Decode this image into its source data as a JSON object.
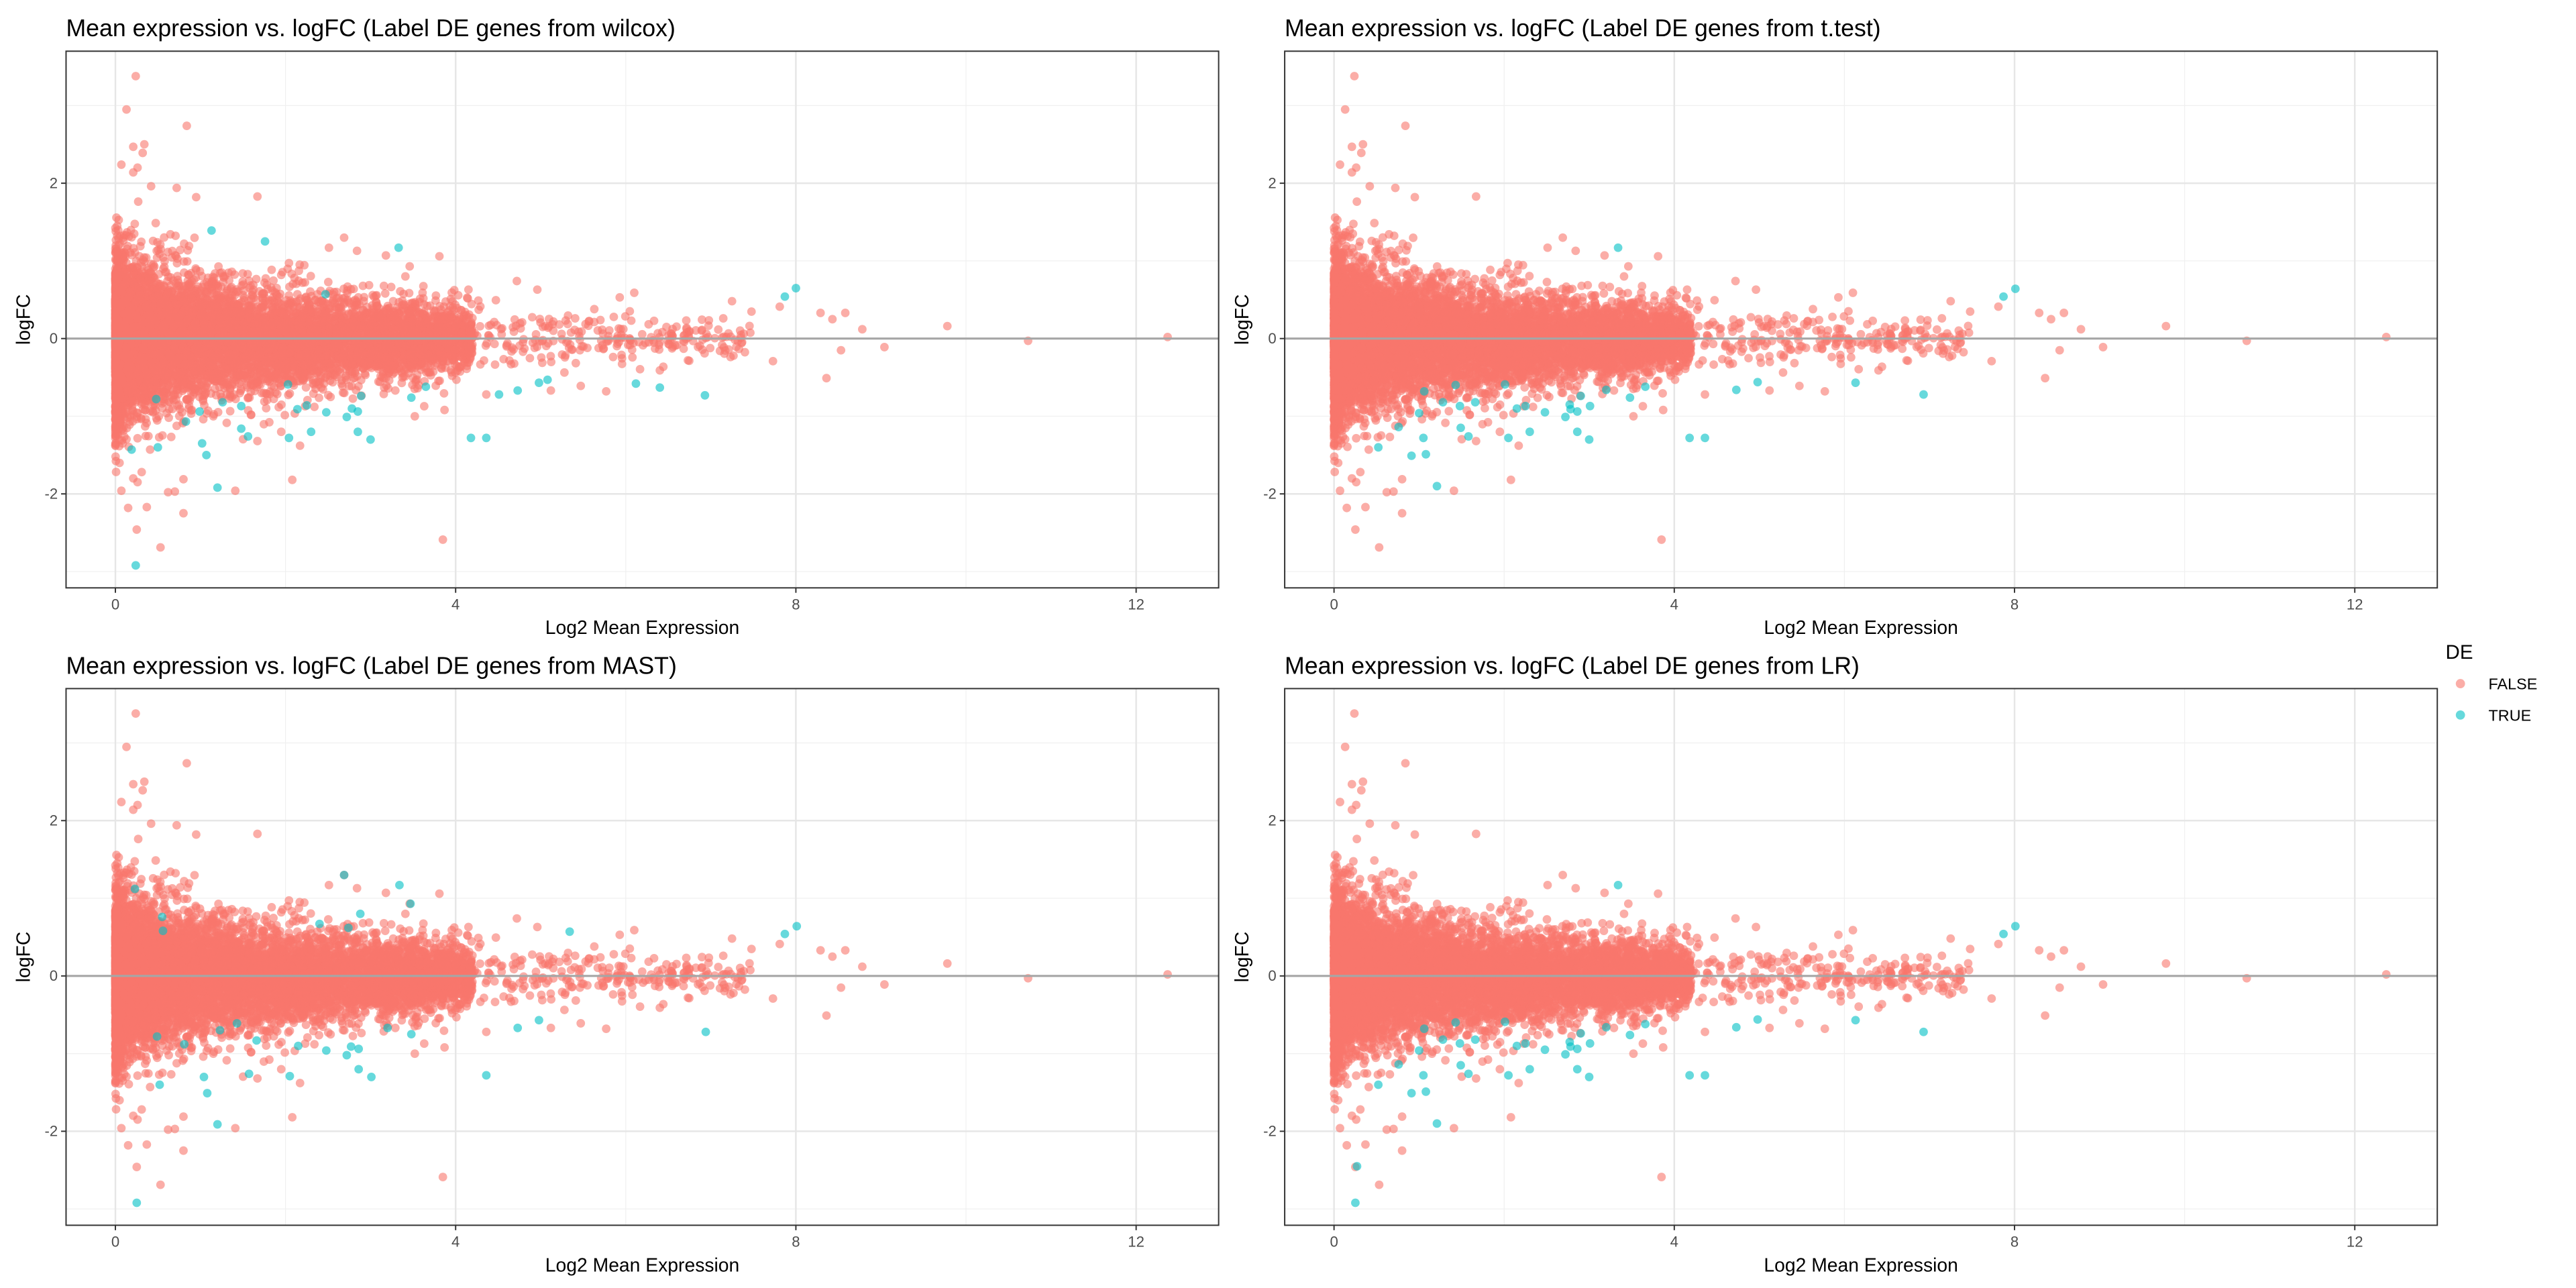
{
  "chart_data": {
    "type": "scatter",
    "xlabel": "Log2 Mean Expression",
    "ylabel": "logFC",
    "xlim": [
      -0.58,
      12.97
    ],
    "ylim": [
      -3.21,
      3.7
    ],
    "x_ticks": [
      0,
      4,
      8,
      12
    ],
    "y_ticks": [
      -2,
      0,
      2
    ],
    "grid": true,
    "hline": 0,
    "legend": {
      "title": "DE",
      "position": "right",
      "entries": [
        {
          "label": "FALSE",
          "color": "#F8766D"
        },
        {
          "label": "TRUE",
          "color": "#00BFC4"
        }
      ]
    },
    "background_cloud": {
      "n": 9000,
      "seed": 7,
      "note_de": "FALSE"
    },
    "false_points": [
      [
        0.24,
        3.38
      ],
      [
        0.13,
        2.95
      ],
      [
        0.84,
        2.74
      ],
      [
        0.21,
        2.47
      ],
      [
        0.34,
        2.5
      ],
      [
        0.32,
        2.39
      ],
      [
        0.07,
        2.24
      ],
      [
        0.26,
        2.2
      ],
      [
        0.21,
        2.14
      ],
      [
        0.42,
        1.96
      ],
      [
        0.72,
        1.94
      ],
      [
        1.67,
        1.83
      ],
      [
        0.95,
        1.82
      ],
      [
        2.69,
        1.3
      ],
      [
        2.51,
        1.17
      ],
      [
        2.84,
        1.13
      ],
      [
        3.81,
        1.06
      ],
      [
        3.18,
        1.07
      ],
      [
        3.46,
        0.93
      ],
      [
        4.72,
        0.74
      ],
      [
        4.96,
        0.63
      ],
      [
        6.1,
        0.59
      ],
      [
        5.93,
        0.53
      ],
      [
        7.25,
        0.48
      ],
      [
        7.81,
        0.41
      ],
      [
        8.58,
        0.33
      ],
      [
        8.29,
        0.33
      ],
      [
        8.43,
        0.25
      ],
      [
        8.78,
        0.12
      ],
      [
        9.78,
        0.16
      ],
      [
        10.73,
        -0.03
      ],
      [
        12.37,
        0.02
      ],
      [
        9.04,
        -0.11
      ],
      [
        8.53,
        -0.15
      ],
      [
        8.36,
        -0.51
      ],
      [
        7.73,
        -0.29
      ],
      [
        6.73,
        -0.28
      ],
      [
        6.4,
        -0.41
      ],
      [
        5.77,
        -0.68
      ],
      [
        5.47,
        -0.61
      ],
      [
        5.12,
        -0.67
      ],
      [
        4.36,
        -0.72
      ],
      [
        3.87,
        -0.92
      ],
      [
        3.52,
        -1.0
      ],
      [
        3.85,
        -2.59
      ],
      [
        2.08,
        -1.82
      ],
      [
        2.17,
        -1.38
      ],
      [
        1.95,
        -1.2
      ],
      [
        1.67,
        -1.32
      ],
      [
        1.41,
        -1.96
      ],
      [
        0.62,
        -1.98
      ],
      [
        0.7,
        -1.97
      ],
      [
        0.8,
        -2.25
      ],
      [
        0.8,
        -1.81
      ],
      [
        0.07,
        -1.96
      ],
      [
        0.15,
        -2.18
      ],
      [
        0.37,
        -2.17
      ],
      [
        0.25,
        -2.46
      ],
      [
        0.53,
        -2.69
      ],
      [
        0.21,
        -1.8
      ],
      [
        0.26,
        -1.85
      ],
      [
        0.31,
        -1.72
      ]
    ],
    "panels": [
      {
        "title": "Mean expression vs. logFC (Label DE genes from wilcox)",
        "x_tick_labels": [
          "0",
          "4",
          "8",
          "12"
        ],
        "y_tick_labels": [
          "-2",
          "0",
          "2"
        ],
        "true_points": [
          [
            0.24,
            -2.92
          ],
          [
            1.2,
            -1.92
          ],
          [
            4.18,
            -1.28
          ],
          [
            4.36,
            -1.28
          ],
          [
            3.0,
            -1.3
          ],
          [
            2.85,
            -1.2
          ],
          [
            2.3,
            -1.2
          ],
          [
            2.04,
            -1.28
          ],
          [
            6.93,
            -0.73
          ],
          [
            6.4,
            -0.63
          ],
          [
            6.12,
            -0.58
          ],
          [
            5.08,
            -0.53
          ],
          [
            4.98,
            -0.57
          ],
          [
            4.73,
            -0.67
          ],
          [
            4.51,
            -0.72
          ],
          [
            3.65,
            -0.62
          ],
          [
            3.48,
            -0.76
          ],
          [
            2.89,
            -0.74
          ],
          [
            2.78,
            -0.9
          ],
          [
            2.85,
            -0.94
          ],
          [
            2.72,
            -1.01
          ],
          [
            2.48,
            -0.95
          ],
          [
            2.25,
            -0.86
          ],
          [
            2.14,
            -0.91
          ],
          [
            8.0,
            0.65
          ],
          [
            7.87,
            0.54
          ],
          [
            3.33,
            1.17
          ],
          [
            1.76,
            1.25
          ],
          [
            1.13,
            1.39
          ],
          [
            2.47,
            0.57
          ],
          [
            1.56,
            -1.26
          ],
          [
            1.48,
            -1.16
          ],
          [
            1.07,
            -1.5
          ],
          [
            1.02,
            -1.35
          ],
          [
            0.83,
            -1.07
          ],
          [
            0.5,
            -1.4
          ],
          [
            0.48,
            -0.78
          ],
          [
            0.19,
            -1.43
          ],
          [
            1.26,
            -0.82
          ],
          [
            1.48,
            -0.87
          ],
          [
            2.03,
            -0.59
          ],
          [
            0.99,
            -0.94
          ]
        ]
      },
      {
        "title": "Mean expression vs. logFC (Label DE genes from t.test)",
        "x_tick_labels": [
          "0",
          "4",
          "8",
          "12"
        ],
        "y_tick_labels": [
          "-2",
          "0",
          "2"
        ],
        "true_points": [
          [
            3.34,
            1.17
          ],
          [
            8.01,
            0.64
          ],
          [
            7.87,
            0.54
          ],
          [
            6.93,
            -0.72
          ],
          [
            6.13,
            -0.57
          ],
          [
            4.98,
            -0.56
          ],
          [
            4.73,
            -0.66
          ],
          [
            3.66,
            -0.62
          ],
          [
            3.48,
            -0.76
          ],
          [
            4.18,
            -1.28
          ],
          [
            4.36,
            -1.28
          ],
          [
            3.0,
            -1.3
          ],
          [
            2.86,
            -1.2
          ],
          [
            2.3,
            -1.2
          ],
          [
            2.05,
            -1.28
          ],
          [
            2.9,
            -0.74
          ],
          [
            2.77,
            -0.85
          ],
          [
            2.78,
            -0.91
          ],
          [
            2.86,
            -0.94
          ],
          [
            2.72,
            -1.01
          ],
          [
            2.48,
            -0.95
          ],
          [
            2.25,
            -0.87
          ],
          [
            2.15,
            -0.9
          ],
          [
            3.01,
            -0.87
          ],
          [
            3.2,
            -0.66
          ],
          [
            2.01,
            -0.59
          ],
          [
            1.49,
            -1.15
          ],
          [
            1.58,
            -1.26
          ],
          [
            1.21,
            -1.9
          ],
          [
            0.91,
            -1.51
          ],
          [
            1.08,
            -1.49
          ],
          [
            0.52,
            -1.4
          ],
          [
            1.05,
            -1.28
          ],
          [
            1.0,
            -0.96
          ],
          [
            1.06,
            -0.68
          ],
          [
            1.28,
            -0.82
          ],
          [
            1.48,
            -0.87
          ],
          [
            1.66,
            -0.82
          ],
          [
            1.43,
            -0.6
          ],
          [
            0.76,
            -1.14
          ]
        ]
      },
      {
        "title": "Mean expression vs. logFC (Label DE genes from MAST)",
        "x_tick_labels": [
          "0",
          "4",
          "8",
          "12"
        ],
        "y_tick_labels": [
          "-2",
          "0",
          "2"
        ],
        "true_points": [
          [
            2.69,
            1.3
          ],
          [
            3.34,
            1.17
          ],
          [
            3.47,
            0.93
          ],
          [
            2.88,
            0.8
          ],
          [
            2.4,
            0.67
          ],
          [
            2.74,
            0.62
          ],
          [
            5.34,
            0.57
          ],
          [
            8.01,
            0.64
          ],
          [
            7.87,
            0.54
          ],
          [
            0.55,
            0.76
          ],
          [
            0.56,
            0.58
          ],
          [
            0.23,
            1.12
          ],
          [
            6.94,
            -0.72
          ],
          [
            4.98,
            -0.57
          ],
          [
            4.73,
            -0.67
          ],
          [
            3.48,
            -0.75
          ],
          [
            3.2,
            -0.67
          ],
          [
            4.36,
            -1.28
          ],
          [
            2.86,
            -1.2
          ],
          [
            3.01,
            -1.3
          ],
          [
            2.72,
            -1.02
          ],
          [
            2.77,
            -0.91
          ],
          [
            2.86,
            -0.94
          ],
          [
            2.48,
            -0.96
          ],
          [
            2.15,
            -0.9
          ],
          [
            2.05,
            -1.29
          ],
          [
            1.57,
            -1.26
          ],
          [
            1.2,
            -1.91
          ],
          [
            0.25,
            -2.92
          ],
          [
            0.52,
            -1.4
          ],
          [
            1.08,
            -1.51
          ],
          [
            1.04,
            -1.3
          ],
          [
            0.49,
            -0.78
          ],
          [
            1.43,
            -0.61
          ],
          [
            0.81,
            -0.88
          ],
          [
            1.23,
            -0.7
          ],
          [
            1.66,
            -0.83
          ]
        ]
      },
      {
        "title": "Mean expression vs. logFC (Label DE genes from LR)",
        "x_tick_labels": [
          "0",
          "4",
          "8",
          "12"
        ],
        "y_tick_labels": [
          "-2",
          "0",
          "2"
        ],
        "true_points": [
          [
            3.34,
            1.17
          ],
          [
            8.01,
            0.64
          ],
          [
            7.87,
            0.54
          ],
          [
            6.93,
            -0.72
          ],
          [
            6.13,
            -0.57
          ],
          [
            4.98,
            -0.56
          ],
          [
            4.73,
            -0.66
          ],
          [
            3.66,
            -0.62
          ],
          [
            3.48,
            -0.76
          ],
          [
            4.18,
            -1.28
          ],
          [
            4.36,
            -1.28
          ],
          [
            3.0,
            -1.3
          ],
          [
            2.86,
            -1.2
          ],
          [
            2.3,
            -1.2
          ],
          [
            2.05,
            -1.28
          ],
          [
            2.9,
            -0.74
          ],
          [
            2.77,
            -0.85
          ],
          [
            2.78,
            -0.91
          ],
          [
            2.86,
            -0.94
          ],
          [
            2.72,
            -1.01
          ],
          [
            2.48,
            -0.95
          ],
          [
            2.25,
            -0.87
          ],
          [
            2.15,
            -0.9
          ],
          [
            3.01,
            -0.87
          ],
          [
            3.2,
            -0.66
          ],
          [
            2.01,
            -0.59
          ],
          [
            1.49,
            -1.15
          ],
          [
            1.58,
            -1.26
          ],
          [
            1.21,
            -1.9
          ],
          [
            0.91,
            -1.51
          ],
          [
            1.08,
            -1.49
          ],
          [
            0.52,
            -1.4
          ],
          [
            1.05,
            -1.28
          ],
          [
            1.0,
            -0.96
          ],
          [
            1.06,
            -0.68
          ],
          [
            1.28,
            -0.82
          ],
          [
            1.48,
            -0.87
          ],
          [
            1.66,
            -0.82
          ],
          [
            1.43,
            -0.6
          ],
          [
            0.76,
            -1.14
          ],
          [
            0.25,
            -2.92
          ],
          [
            0.27,
            -2.45
          ]
        ]
      }
    ]
  }
}
